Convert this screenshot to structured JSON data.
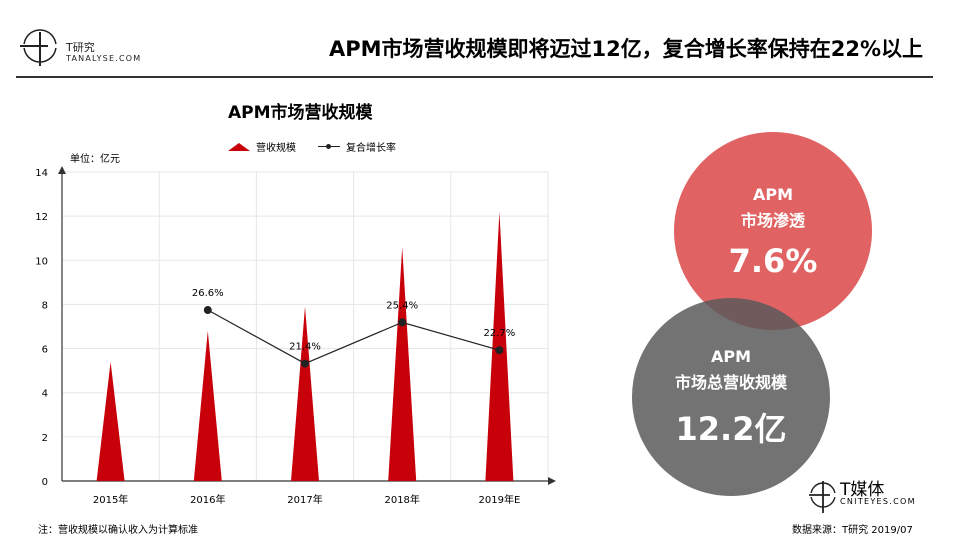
{
  "header": {
    "brand": "T研究",
    "brand_sub": "TANALYSE.COM",
    "headline": "APM市场营收规模即将迈过12亿，复合增长率保持在22%以上"
  },
  "colors": {
    "bar": "#c8000a",
    "line": "#222222",
    "circle_red": "#dc4646",
    "circle_gray": "#5a5a5a"
  },
  "chart_data": {
    "type": "bar",
    "title": "APM市场营收规模",
    "unit_label": "单位：亿元",
    "legend": [
      "营收规模",
      "复合增长率"
    ],
    "categories": [
      "2015年",
      "2016年",
      "2017年",
      "2018年",
      "2019年E"
    ],
    "ylim": [
      0,
      14
    ],
    "yticks": [
      "0",
      "2",
      "4",
      "6",
      "8",
      "10",
      "12",
      "14"
    ],
    "grid": true,
    "series": [
      {
        "name": "营收规模",
        "type": "bar",
        "values": [
          5.4,
          6.8,
          7.9,
          10.6,
          12.2
        ]
      },
      {
        "name": "复合增长率",
        "type": "line",
        "values": [
          null,
          26.6,
          21.4,
          25.4,
          22.7
        ],
        "labels": [
          "",
          "26.6%",
          "21.4%",
          "25.4%",
          "22.7%"
        ]
      }
    ]
  },
  "callouts": {
    "penetration": {
      "line1": "APM",
      "line2": "市场渗透",
      "value": "7.6%"
    },
    "revenue": {
      "line1": "APM",
      "line2": "市场总营收规模",
      "value": "12.2亿"
    }
  },
  "footer": {
    "note": "注：营收规模以确认收入为计算标准",
    "source": "数据来源：T研究 2019/07",
    "media": "T媒体",
    "media_sub": "CNITEYES.COM"
  }
}
